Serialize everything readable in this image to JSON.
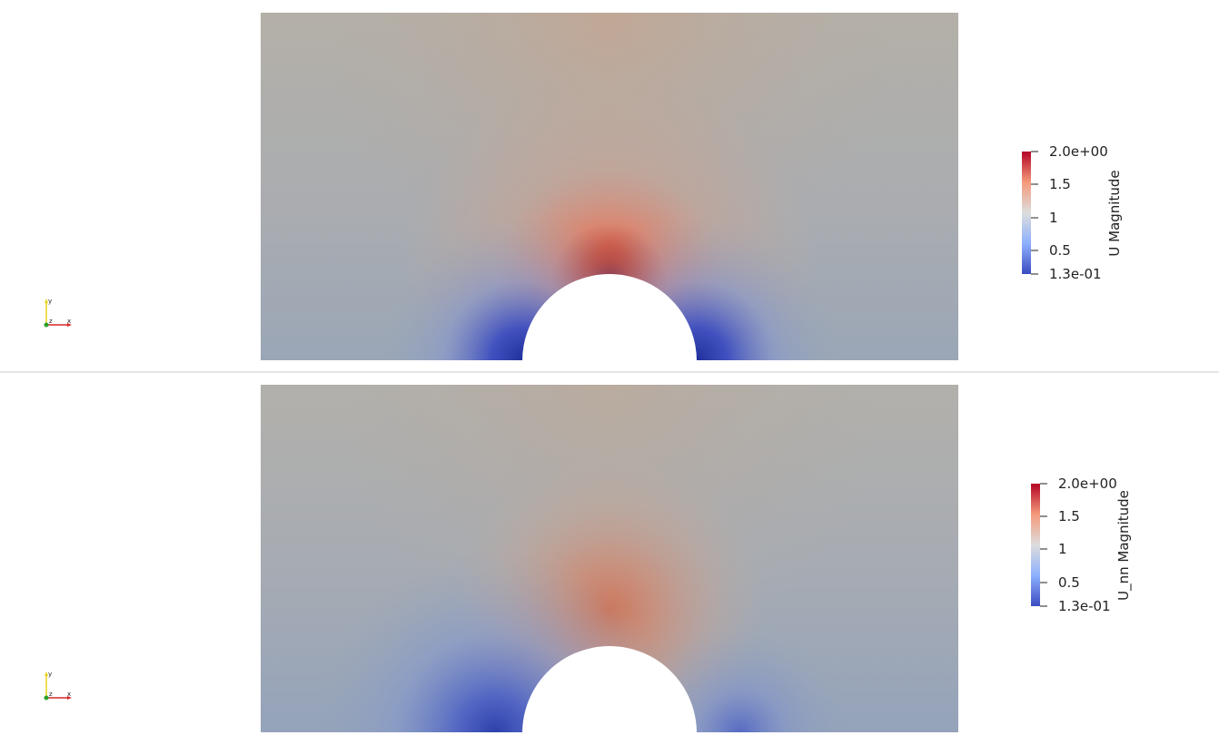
{
  "viewports": [
    {
      "name": "U Magnitude",
      "colorbar": {
        "title": "U Magnitude",
        "ticks": [
          "2.0e+00",
          "1.5",
          "1",
          "0.5",
          "1.3e-01"
        ],
        "range": [
          0.13,
          2.0
        ]
      },
      "field": {
        "variant": "reference"
      }
    },
    {
      "name": "U_nn Magnitude",
      "colorbar": {
        "title": "U_nn Magnitude",
        "ticks": [
          "2.0e+00",
          "1.5",
          "1",
          "0.5",
          "1.3e-01"
        ],
        "range": [
          0.13,
          2.0
        ]
      },
      "field": {
        "variant": "prediction"
      }
    }
  ],
  "orientation_axes": {
    "x": "x",
    "y": "y",
    "z": "z"
  },
  "colors": {
    "background": "#ffffff",
    "divider": "#e6e6e6",
    "colormap": [
      "#3b4cc0",
      "#8db0fe",
      "#dddddd",
      "#f49a7b",
      "#b40426"
    ],
    "axis_x": "#d62728",
    "axis_y": "#e8d21d",
    "axis_z": "#2ca02c"
  }
}
